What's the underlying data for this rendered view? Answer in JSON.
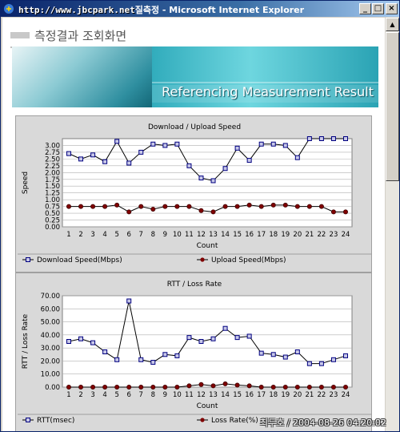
{
  "window": {
    "title_watermark": "http://www.jbcpark.net",
    "title_partial": "질측정",
    "title_app": " - Microsoft Internet Explorer",
    "minimize_glyph": "_",
    "maximize_glyph": "□",
    "close_glyph": "×"
  },
  "page": {
    "title": "측정결과 조회화면",
    "banner_text": "Referencing Measurement Result"
  },
  "watermark": "최두호 / 2004-08-26 04:20:02",
  "chart_data": [
    {
      "type": "line",
      "title": "Download / Upload Speed",
      "xlabel": "Count",
      "ylabel": "Speed",
      "x": [
        1,
        2,
        3,
        4,
        5,
        6,
        7,
        8,
        9,
        10,
        11,
        12,
        13,
        14,
        15,
        16,
        17,
        18,
        19,
        20,
        21,
        22,
        23,
        24
      ],
      "ylim": [
        0,
        3.25
      ],
      "yticks": [
        0.0,
        0.25,
        0.5,
        0.75,
        1.0,
        1.25,
        1.5,
        1.75,
        2.0,
        2.25,
        2.5,
        2.75,
        3.0
      ],
      "ytick_labels": [
        "0.00",
        "0.25",
        "0.50",
        "0.75",
        "1.00",
        "1.25",
        "1.50",
        "1.75",
        "2.00",
        "2.25",
        "2.50",
        "2.75",
        "3.00"
      ],
      "grid": true,
      "legend_position": "bottom",
      "series": [
        {
          "name": "Download Speed(Mbps)",
          "color": "#000080",
          "marker": "square",
          "values": [
            2.7,
            2.5,
            2.65,
            2.4,
            3.15,
            2.35,
            2.75,
            3.05,
            3.0,
            3.05,
            2.25,
            1.8,
            1.7,
            2.15,
            2.9,
            2.45,
            3.05,
            3.05,
            3.0,
            2.55,
            3.25,
            3.25,
            3.25,
            3.25
          ]
        },
        {
          "name": "Upload Speed(Mbps)",
          "color": "#800000",
          "marker": "circle",
          "values": [
            0.75,
            0.75,
            0.75,
            0.75,
            0.8,
            0.55,
            0.75,
            0.65,
            0.75,
            0.75,
            0.75,
            0.6,
            0.55,
            0.75,
            0.75,
            0.8,
            0.75,
            0.8,
            0.8,
            0.75,
            0.75,
            0.75,
            0.55,
            0.55
          ]
        }
      ]
    },
    {
      "type": "line",
      "title": "RTT / Loss Rate",
      "xlabel": "Count",
      "ylabel": "RTT / Loss Rate",
      "x": [
        1,
        2,
        3,
        4,
        5,
        6,
        7,
        8,
        9,
        10,
        11,
        12,
        13,
        14,
        15,
        16,
        17,
        18,
        19,
        20,
        21,
        22,
        23,
        24
      ],
      "ylim": [
        0,
        70
      ],
      "yticks": [
        0,
        10,
        20,
        30,
        40,
        50,
        60,
        70
      ],
      "ytick_labels": [
        "0.00",
        "10.00",
        "20.00",
        "30.00",
        "40.00",
        "50.00",
        "60.00",
        "70.00"
      ],
      "grid": true,
      "legend_position": "bottom",
      "series": [
        {
          "name": "RTT(msec)",
          "color": "#000080",
          "marker": "square",
          "values": [
            35,
            37,
            34,
            27,
            21,
            66,
            21,
            19,
            25,
            24,
            38,
            35,
            37,
            45,
            38,
            39,
            26,
            25,
            23,
            27,
            18,
            18,
            21,
            24
          ]
        },
        {
          "name": "Loss Rate(%)",
          "color": "#800000",
          "marker": "circle",
          "values": [
            0,
            0,
            0,
            0,
            0,
            0,
            0,
            0,
            0,
            0,
            1,
            2,
            1,
            2.5,
            1.5,
            1,
            0,
            0,
            0,
            0,
            0,
            0,
            0,
            0
          ]
        }
      ]
    }
  ]
}
